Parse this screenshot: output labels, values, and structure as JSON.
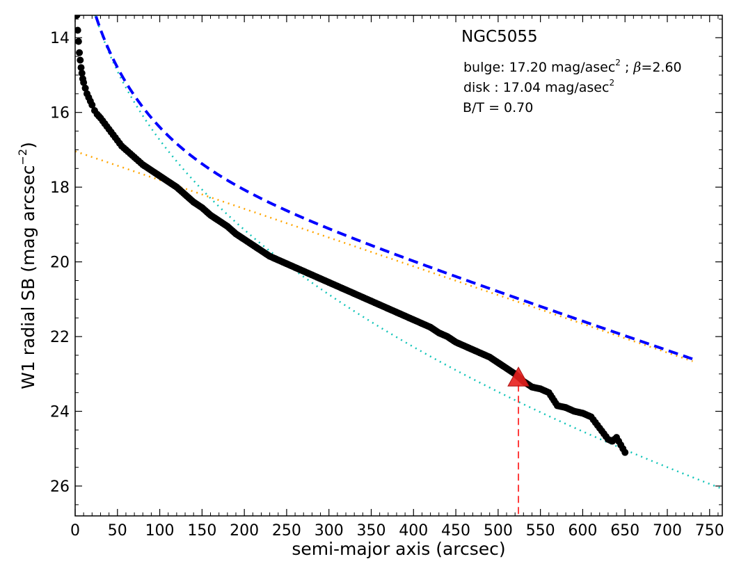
{
  "chart_data": {
    "type": "scatter",
    "title": "NGC5055",
    "xlabel": "semi-major axis (arcsec)",
    "ylabel_main": "W1 radial SB (mag arcsec",
    "ylabel_exp": "−2",
    "ylabel_close": ")",
    "xlim": [
      0,
      765
    ],
    "ylim": [
      26.8,
      13.4
    ],
    "y_inverted": true,
    "xticks": [
      0,
      50,
      100,
      150,
      200,
      250,
      300,
      350,
      400,
      450,
      500,
      550,
      600,
      650,
      700,
      750
    ],
    "yticks": [
      14,
      16,
      18,
      20,
      22,
      24,
      26
    ],
    "grid": false,
    "annotations": {
      "bulge_prefix": "bulge: 17.20 mag/asec",
      "bulge_suffix": " ; ",
      "beta_symbol": "β",
      "beta_value": "=2.60",
      "disk_prefix": "disk  : 17.04 mag/asec",
      "sq": "2",
      "bt": "B/T = 0.70"
    },
    "bulge": {
      "mu_e": 17.2,
      "beta": 2.6
    },
    "disk": {
      "mu0": 17.04,
      "scale": 141
    },
    "marker": {
      "x": 524,
      "y": 23.1
    },
    "series": [
      {
        "style": "data-points",
        "x": [
          2,
          3,
          4,
          5,
          6,
          7,
          8,
          9,
          10,
          12,
          14,
          16,
          18,
          20,
          23,
          26,
          30,
          35,
          40,
          45,
          50,
          55,
          60,
          65,
          70,
          75,
          80,
          90,
          100,
          110,
          120,
          130,
          140,
          150,
          160,
          170,
          180,
          190,
          200,
          210,
          220,
          230,
          240,
          250,
          260,
          270,
          280,
          290,
          300,
          310,
          320,
          330,
          340,
          350,
          360,
          370,
          380,
          390,
          400,
          410,
          420,
          430,
          440,
          450,
          460,
          470,
          480,
          490,
          500,
          510,
          520,
          530,
          540,
          550,
          560,
          570,
          580,
          590,
          600,
          610,
          615,
          620,
          625,
          630,
          635,
          640,
          645,
          650
        ],
        "y": [
          13.4,
          13.8,
          14.1,
          14.4,
          14.6,
          14.8,
          14.95,
          15.1,
          15.2,
          15.35,
          15.5,
          15.6,
          15.7,
          15.8,
          15.95,
          16.05,
          16.15,
          16.3,
          16.45,
          16.6,
          16.75,
          16.9,
          17.0,
          17.1,
          17.2,
          17.3,
          17.4,
          17.55,
          17.7,
          17.85,
          18.0,
          18.2,
          18.4,
          18.55,
          18.75,
          18.9,
          19.05,
          19.25,
          19.4,
          19.55,
          19.7,
          19.85,
          19.95,
          20.05,
          20.15,
          20.25,
          20.35,
          20.45,
          20.55,
          20.65,
          20.75,
          20.85,
          20.95,
          21.05,
          21.15,
          21.25,
          21.35,
          21.45,
          21.55,
          21.65,
          21.75,
          21.9,
          22.0,
          22.15,
          22.25,
          22.35,
          22.45,
          22.55,
          22.7,
          22.85,
          23.0,
          23.2,
          23.35,
          23.4,
          23.5,
          23.85,
          23.9,
          24.0,
          24.05,
          24.15,
          24.3,
          24.45,
          24.6,
          24.75,
          24.8,
          24.7,
          24.9,
          25.1
        ]
      },
      {
        "style": "total-fit-dashed",
        "color": "#0000ff",
        "x_from": 2,
        "x_to": 730
      },
      {
        "style": "bulge-dotted",
        "color": "#11c4b8",
        "x_from": 2,
        "x_to": 765
      },
      {
        "style": "disk-dotted",
        "color": "#ffa500",
        "x_from": 0,
        "x_to": 730
      }
    ],
    "colors": {
      "points": "#000000",
      "total": "#0000ff",
      "bulge": "#11c4b8",
      "disk": "#ffa500",
      "marker": "#e8201e",
      "marker_line": "#ff3b3b"
    }
  }
}
